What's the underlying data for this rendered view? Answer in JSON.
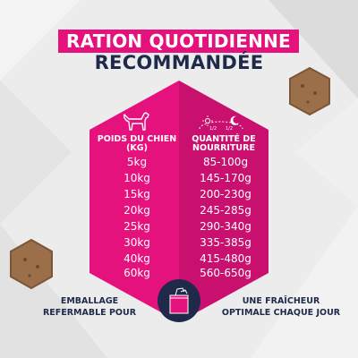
{
  "heading": {
    "title": "RATION QUOTIDIENNE",
    "subtitle": "RECOMMANDÉE"
  },
  "table": {
    "left_header": "POIDS DU CHIEN\n(KG)",
    "right_header": "QUANTITÉ DE\nNOURRITURE",
    "portion_left": "1/2",
    "portion_right": "1/2",
    "rows": [
      {
        "weight": "5kg",
        "food": "85-100g"
      },
      {
        "weight": "10kg",
        "food": "145-170g"
      },
      {
        "weight": "15kg",
        "food": "200-230g"
      },
      {
        "weight": "20kg",
        "food": "245-285g"
      },
      {
        "weight": "25kg",
        "food": "290-340g"
      },
      {
        "weight": "30kg",
        "food": "335-385g"
      },
      {
        "weight": "40kg",
        "food": "415-480g"
      },
      {
        "weight": "60kg",
        "food": "560-650g"
      }
    ]
  },
  "bottom": {
    "left_text": "EMBALLAGE\nREFERMABLE POUR",
    "right_text": "UNE FRAÎCHEUR\nOPTIMALE CHAQUE JOUR"
  },
  "colors": {
    "pink": "#e5127d",
    "pink_dark": "#c9106e",
    "navy": "#1f2a4a",
    "background": "#ebebeb"
  },
  "icons": {
    "dog": "dog-icon",
    "sun": "sun-icon",
    "moon": "moon-icon",
    "bag": "resealable-bag-icon"
  }
}
